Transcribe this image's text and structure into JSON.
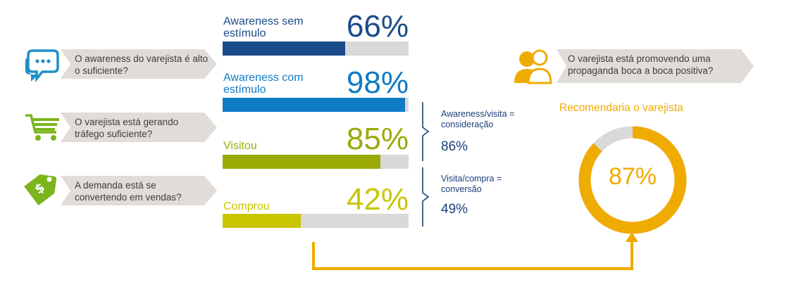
{
  "colors": {
    "navy": "#1a4a8a",
    "blue": "#0f7ac4",
    "olive": "#9aab07",
    "lime": "#c9c600",
    "orange": "#f0ab00",
    "track": "#d9d9d9",
    "question_bg": "#e1dcd7",
    "icon_blue": "#1f8fc5",
    "icon_green": "#7bb51c"
  },
  "questions": [
    {
      "text": "O awareness do varejista é alto o suficiente?",
      "icon": "speech-bubbles-icon"
    },
    {
      "text": "O varejista está gerando tráfego suficiente?",
      "icon": "shopping-cart-icon"
    },
    {
      "text": "A demanda está se convertendo em vendas?",
      "icon": "price-tag-icon"
    }
  ],
  "right_question": {
    "text": "O varejista está promovendo uma propaganda boca a boca positiva?",
    "icon": "people-icon"
  },
  "chart_data": [
    {
      "type": "bar",
      "categories": [
        "Awareness sem estímulo",
        "Awareness com estímulo",
        "Visitou",
        "Comprou"
      ],
      "values": [
        66,
        98,
        85,
        42
      ],
      "value_labels": [
        "66%",
        "98%",
        "85%",
        "42%"
      ],
      "colors": [
        "#1a4a8a",
        "#0f7ac4",
        "#9aab07",
        "#c9c600"
      ],
      "ylim": [
        0,
        100
      ],
      "annotations": [
        {
          "label": "Awareness/visita = consideração",
          "value": "86%"
        },
        {
          "label": "Visita/compra = conversão",
          "value": "49%"
        }
      ]
    },
    {
      "type": "pie",
      "title": "Recomendaria o varejista",
      "values": [
        87,
        13
      ],
      "value_label": "87%",
      "colors": [
        "#f0ab00",
        "#d9d9d9"
      ]
    }
  ]
}
